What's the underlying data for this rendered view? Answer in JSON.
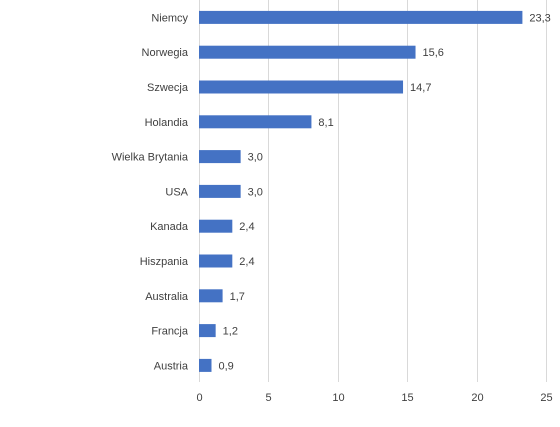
{
  "chart_data": {
    "type": "bar",
    "orientation": "horizontal",
    "categories": [
      "Niemcy",
      "Norwegia",
      "Szwecja",
      "Holandia",
      "Wielka Brytania",
      "USA",
      "Kanada",
      "Hiszpania",
      "Australia",
      "Francja",
      "Austria"
    ],
    "values": [
      23.3,
      15.6,
      14.7,
      8.1,
      3.0,
      3.0,
      2.4,
      2.4,
      1.7,
      1.2,
      0.9
    ],
    "value_labels": [
      "23,3",
      "15,6",
      "14,7",
      "8,1",
      "3,0",
      "3,0",
      "2,4",
      "2,4",
      "1,7",
      "1,2",
      "0,9"
    ],
    "x_ticks": [
      "0",
      "5",
      "10",
      "15",
      "20",
      "25"
    ],
    "xlim": [
      0,
      25
    ],
    "grid": "vertical",
    "legend": "none",
    "bar_color": "#4472c4"
  }
}
